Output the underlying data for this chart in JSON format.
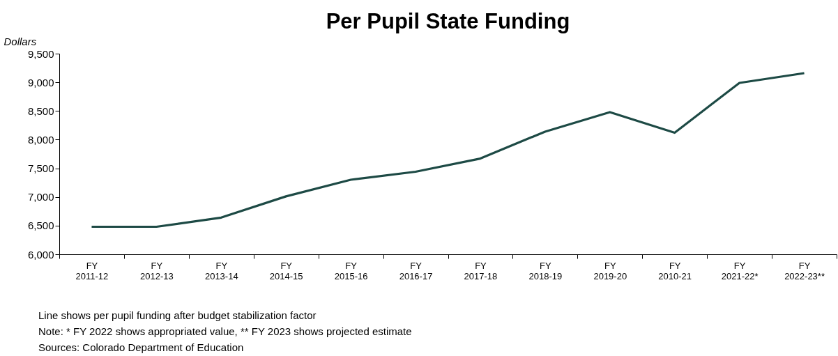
{
  "chart_data": {
    "type": "line",
    "title": "Per Pupil State Funding",
    "ylabel": "Dollars",
    "categories": [
      "FY\n2011-12",
      "FY\n2012-13",
      "FY\n2013-14",
      "FY\n2014-15",
      "FY\n2015-16",
      "FY\n2016-17",
      "FY\n2017-18",
      "FY\n2018-19",
      "FY\n2019-20",
      "FY\n2010-21",
      "FY\n2021-22*",
      "FY\n2022-23**"
    ],
    "series": [
      {
        "color": "#1d4a45",
        "values": [
          6480,
          6480,
          6640,
          7010,
          7300,
          7440,
          7670,
          8140,
          8480,
          8120,
          8990,
          9160
        ]
      }
    ],
    "ylim": [
      6000,
      9500
    ],
    "yticks": [
      {
        "value": 6000,
        "label": "6,000"
      },
      {
        "value": 6500,
        "label": "6,500"
      },
      {
        "value": 7000,
        "label": "7,000"
      },
      {
        "value": 7500,
        "label": "7,500"
      },
      {
        "value": 8000,
        "label": "8,000"
      },
      {
        "value": 8500,
        "label": "8,500"
      },
      {
        "value": 9000,
        "label": "9,000"
      },
      {
        "value": 9500,
        "label": "9,500"
      }
    ],
    "grid": false,
    "marker": "none",
    "line_style": "solid",
    "annotations": [
      "Line shows per pupil funding after budget stabilization  factor",
      "Note: * FY 2022 shows appropriated value, ** FY 2023 shows projected estimate",
      "Sources: Colorado Department  of Education"
    ]
  }
}
